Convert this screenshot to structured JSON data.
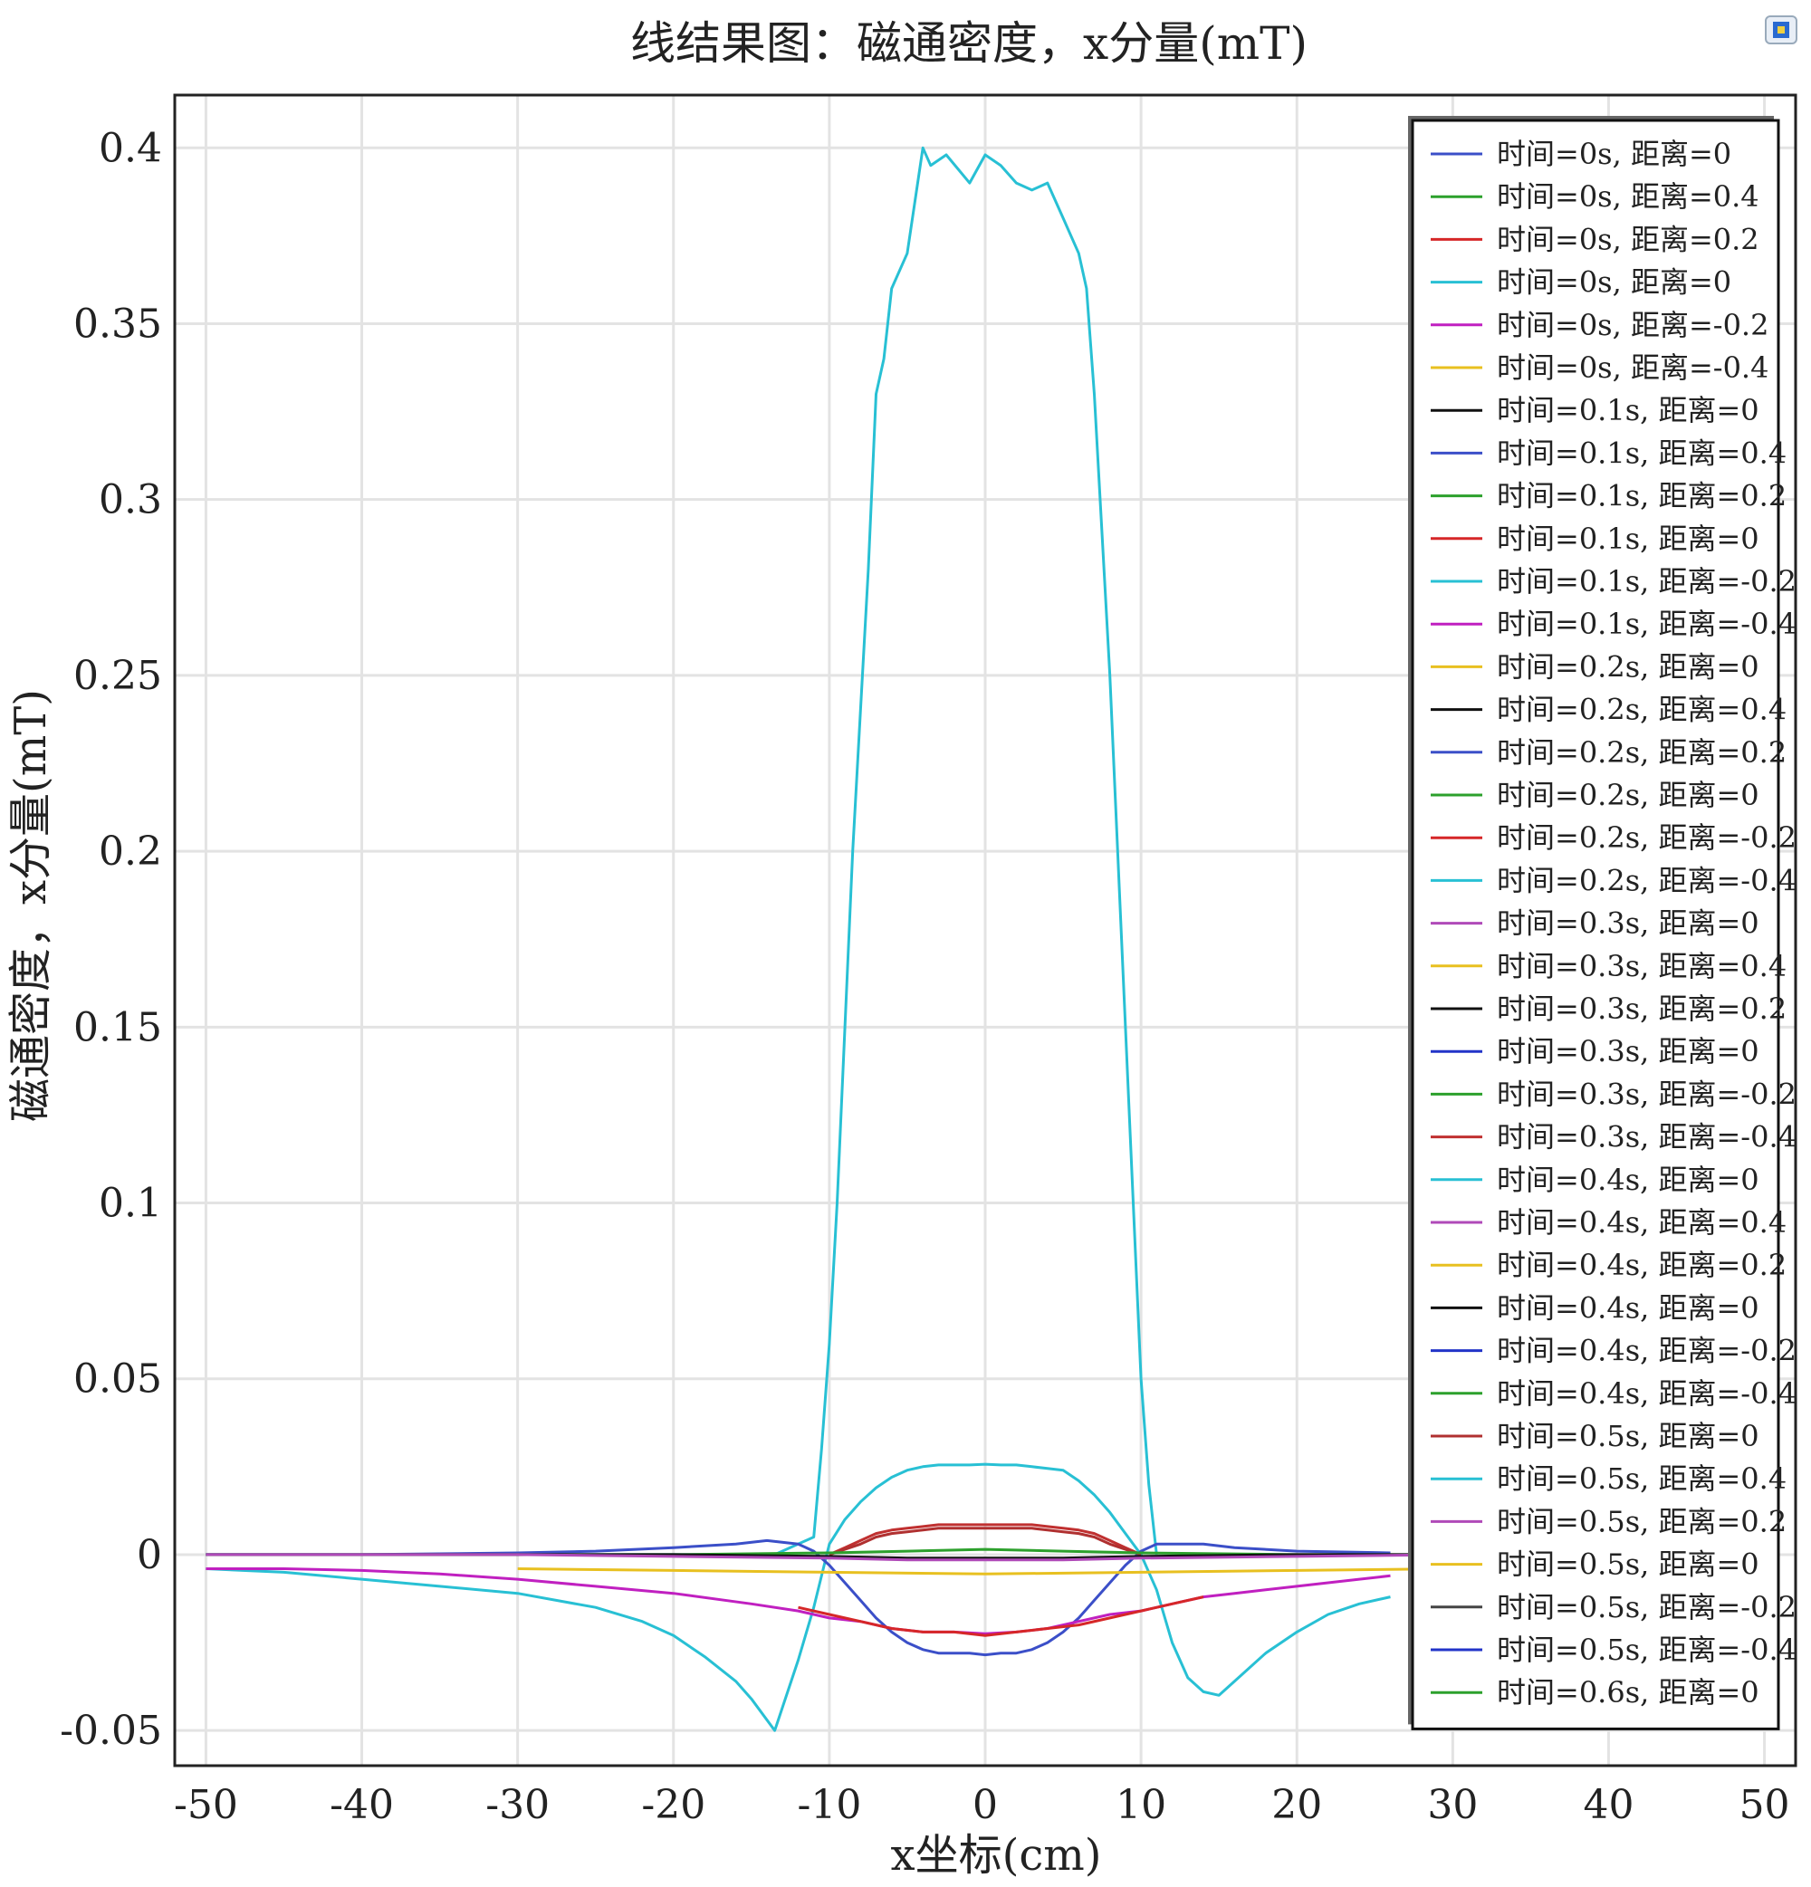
{
  "chart_data": {
    "type": "line",
    "title": "线结果图：磁通密度，x分量(mT)",
    "xlabel": "x坐标(cm)",
    "ylabel": "磁通密度，x分量(mT)",
    "xlim": [
      -52,
      52
    ],
    "ylim": [
      -0.06,
      0.415
    ],
    "xticks": [
      -50,
      -40,
      -30,
      -20,
      -10,
      0,
      10,
      20,
      30,
      40,
      50
    ],
    "yticks": [
      -0.05,
      0,
      0.05,
      0.1,
      0.15,
      0.2,
      0.25,
      0.3,
      0.35,
      0.4
    ],
    "grid": true,
    "legend_position": "top-right",
    "legend": [
      {
        "label": "时间=0s, 距离=0",
        "color": "#3b4fc8"
      },
      {
        "label": "时间=0s, 距离=0.4",
        "color": "#2ca02c"
      },
      {
        "label": "时间=0s, 距离=0.2",
        "color": "#d62728"
      },
      {
        "label": "时间=0s, 距离=0",
        "color": "#28c0d4"
      },
      {
        "label": "时间=0s, 距离=-0.2",
        "color": "#c020c0"
      },
      {
        "label": "时间=0s, 距离=-0.4",
        "color": "#e8c020"
      },
      {
        "label": "时间=0.1s, 距离=0",
        "color": "#111111"
      },
      {
        "label": "时间=0.1s, 距离=0.4",
        "color": "#3b4fc8"
      },
      {
        "label": "时间=0.1s, 距离=0.2",
        "color": "#2ca02c"
      },
      {
        "label": "时间=0.1s, 距离=0",
        "color": "#d62728"
      },
      {
        "label": "时间=0.1s, 距离=-0.2",
        "color": "#28c0d4"
      },
      {
        "label": "时间=0.1s, 距离=-0.4",
        "color": "#c020c0"
      },
      {
        "label": "时间=0.2s, 距离=0",
        "color": "#e8c020"
      },
      {
        "label": "时间=0.2s, 距离=0.4",
        "color": "#111111"
      },
      {
        "label": "时间=0.2s, 距离=0.2",
        "color": "#3b4fc8"
      },
      {
        "label": "时间=0.2s, 距离=0",
        "color": "#2ca02c"
      },
      {
        "label": "时间=0.2s, 距离=-0.2",
        "color": "#d62728"
      },
      {
        "label": "时间=0.2s, 距离=-0.4",
        "color": "#28c0d4"
      },
      {
        "label": "时间=0.3s, 距离=0",
        "color": "#b04ab8"
      },
      {
        "label": "时间=0.3s, 距离=0.4",
        "color": "#e8c020"
      },
      {
        "label": "时间=0.3s, 距离=0.2",
        "color": "#111111"
      },
      {
        "label": "时间=0.3s, 距离=0",
        "color": "#2234c8"
      },
      {
        "label": "时间=0.3s, 距离=-0.2",
        "color": "#2ca02c"
      },
      {
        "label": "时间=0.3s, 距离=-0.4",
        "color": "#c03030"
      },
      {
        "label": "时间=0.4s, 距离=0",
        "color": "#28c0d4"
      },
      {
        "label": "时间=0.4s,  距离=0.4",
        "color": "#b04ab8"
      },
      {
        "label": "时间=0.4s, 距离=0.2",
        "color": "#e8c020"
      },
      {
        "label": "时间=0.4s, 距离=0",
        "color": "#111111"
      },
      {
        "label": "时间=0.4s, 距离=-0.2",
        "color": "#2234c8"
      },
      {
        "label": "时间=0.4s, 距离=-0.4",
        "color": "#2ca02c"
      },
      {
        "label": "时间=0.5s, 距离=0",
        "color": "#b03030"
      },
      {
        "label": "时间=0.5s,  距离=0.4",
        "color": "#28c0d4"
      },
      {
        "label": "时间=0.5s, 距离=0.2",
        "color": "#b04ab8"
      },
      {
        "label": "时间=0.5s, 距离=0",
        "color": "#e8c020"
      },
      {
        "label": "时间=0.5s, 距离=-0.2",
        "color": "#444444"
      },
      {
        "label": "时间=0.5s, 距离=-0.4",
        "color": "#2234c8"
      },
      {
        "label": "时间=0.6s, 距离=0",
        "color": "#2ca02c"
      }
    ],
    "series": [
      {
        "color": "#28c0d4",
        "x": [
          -50,
          -40,
          -30,
          -25,
          -20,
          -17,
          -15,
          -13.5,
          -11,
          -10.5,
          -10,
          -9.5,
          -9,
          -8.5,
          -8,
          -7.5,
          -7,
          -6.5,
          -6,
          -5,
          -4,
          -3.5,
          -2.5,
          -1,
          0,
          1,
          2,
          3,
          4,
          5,
          6,
          6.5,
          7,
          7.5,
          8,
          8.5,
          9,
          9.5,
          10,
          10.5,
          11
        ],
        "y": [
          0,
          0,
          0,
          0,
          0,
          0,
          0,
          0,
          0.005,
          0.03,
          0.06,
          0.1,
          0.15,
          0.2,
          0.24,
          0.28,
          0.33,
          0.34,
          0.36,
          0.37,
          0.4,
          0.395,
          0.398,
          0.39,
          0.398,
          0.395,
          0.39,
          0.388,
          0.39,
          0.38,
          0.37,
          0.36,
          0.33,
          0.29,
          0.25,
          0.2,
          0.15,
          0.1,
          0.05,
          0.02,
          0
        ]
      },
      {
        "color": "#28c0d4",
        "x": [
          -50,
          -45,
          -40,
          -35,
          -30,
          -25,
          -22,
          -20,
          -18,
          -16,
          -15,
          -13.5,
          -12,
          -11,
          -10,
          -9,
          -8,
          -7,
          -6,
          -5,
          -4,
          -3,
          -2,
          -1,
          0,
          1,
          2,
          3,
          4,
          5,
          6,
          7,
          8,
          9,
          10,
          11,
          12,
          13,
          14,
          15,
          16,
          18,
          20,
          22,
          24,
          26
        ],
        "y": [
          -0.004,
          -0.005,
          -0.007,
          -0.009,
          -0.011,
          -0.015,
          -0.019,
          -0.023,
          -0.029,
          -0.036,
          -0.041,
          -0.05,
          -0.03,
          -0.015,
          0.003,
          0.01,
          0.015,
          0.019,
          0.022,
          0.024,
          0.025,
          0.0255,
          0.0255,
          0.0255,
          0.0257,
          0.0255,
          0.0255,
          0.025,
          0.0245,
          0.024,
          0.021,
          0.017,
          0.012,
          0.006,
          0.0,
          -0.01,
          -0.025,
          -0.035,
          -0.039,
          -0.04,
          -0.036,
          -0.028,
          -0.022,
          -0.017,
          -0.014,
          -0.012
        ]
      },
      {
        "color": "#3b4fc8",
        "x": [
          -50,
          -40,
          -30,
          -25,
          -20,
          -16,
          -14,
          -12,
          -11,
          -10,
          -9,
          -8,
          -7,
          -6,
          -5,
          -4,
          -3,
          -2,
          -1,
          0,
          1,
          2,
          3,
          4,
          5,
          6,
          7,
          8,
          9,
          10,
          11,
          12,
          14,
          16,
          20,
          26
        ],
        "y": [
          0,
          0,
          0.0005,
          0.001,
          0.002,
          0.003,
          0.004,
          0.003,
          0.001,
          -0.003,
          -0.008,
          -0.013,
          -0.018,
          -0.022,
          -0.025,
          -0.027,
          -0.028,
          -0.028,
          -0.028,
          -0.0285,
          -0.028,
          -0.028,
          -0.027,
          -0.025,
          -0.022,
          -0.018,
          -0.013,
          -0.008,
          -0.003,
          0.001,
          0.003,
          0.003,
          0.003,
          0.002,
          0.001,
          0.0005
        ]
      },
      {
        "color": "#c020c0",
        "x": [
          -50,
          -45,
          -40,
          -35,
          -30,
          -25,
          -20,
          -15,
          -12,
          -10,
          -8,
          -6,
          -4,
          -2,
          0,
          2,
          4,
          6,
          8,
          10,
          12,
          14,
          16,
          18,
          20,
          22,
          24,
          26
        ],
        "y": [
          -0.004,
          -0.004,
          -0.0045,
          -0.0055,
          -0.007,
          -0.009,
          -0.011,
          -0.014,
          -0.016,
          -0.018,
          -0.019,
          -0.021,
          -0.022,
          -0.022,
          -0.0225,
          -0.022,
          -0.021,
          -0.019,
          -0.017,
          -0.016,
          -0.014,
          -0.012,
          -0.011,
          -0.01,
          -0.009,
          -0.008,
          -0.007,
          -0.006
        ]
      },
      {
        "color": "#d62728",
        "x": [
          -12,
          -10,
          -8,
          -6,
          -4,
          -2,
          0,
          2,
          4,
          6,
          8,
          10,
          12,
          14
        ],
        "y": [
          -0.015,
          -0.017,
          -0.019,
          -0.021,
          -0.022,
          -0.022,
          -0.023,
          -0.022,
          -0.021,
          -0.02,
          -0.018,
          -0.016,
          -0.014,
          -0.012
        ]
      },
      {
        "color": "#c03030",
        "x": [
          -10,
          -9,
          -8,
          -7,
          -6,
          -5,
          -4,
          -3,
          -2,
          -1,
          0,
          1,
          2,
          3,
          4,
          5,
          6,
          7,
          8,
          9,
          10
        ],
        "y": [
          0,
          0.002,
          0.004,
          0.006,
          0.007,
          0.0075,
          0.008,
          0.0085,
          0.0085,
          0.0085,
          0.0085,
          0.0085,
          0.0085,
          0.0085,
          0.008,
          0.0075,
          0.007,
          0.006,
          0.004,
          0.002,
          0
        ]
      },
      {
        "color": "#b03030",
        "x": [
          -10,
          -9,
          -8,
          -7,
          -6,
          -5,
          -4,
          -3,
          -2,
          -1,
          0,
          1,
          2,
          3,
          4,
          5,
          6,
          7,
          8,
          9,
          10
        ],
        "y": [
          0,
          0.0015,
          0.003,
          0.005,
          0.006,
          0.0065,
          0.007,
          0.0075,
          0.0075,
          0.0075,
          0.0075,
          0.0075,
          0.0075,
          0.0075,
          0.007,
          0.0065,
          0.006,
          0.005,
          0.003,
          0.0015,
          0
        ]
      },
      {
        "color": "#2ca02c",
        "x": [
          -50,
          -40,
          -30,
          -20,
          -10,
          -5,
          0,
          5,
          10,
          20,
          30,
          40,
          50
        ],
        "y": [
          0,
          0,
          0,
          0,
          0.0005,
          0.001,
          0.0015,
          0.001,
          0.0005,
          0,
          0,
          0,
          0
        ]
      },
      {
        "color": "#111111",
        "x": [
          -50,
          -40,
          -30,
          -20,
          -10,
          -5,
          0,
          5,
          10,
          20,
          30,
          40,
          50
        ],
        "y": [
          0,
          0,
          0,
          0,
          -0.0005,
          -0.001,
          -0.001,
          -0.001,
          -0.0005,
          0,
          0,
          0,
          0
        ]
      },
      {
        "color": "#b04ab8",
        "x": [
          -50,
          -40,
          -30,
          -20,
          -10,
          -5,
          0,
          5,
          10,
          20,
          30,
          40,
          50
        ],
        "y": [
          0,
          0,
          0,
          -0.0005,
          -0.001,
          -0.0015,
          -0.0015,
          -0.0015,
          -0.001,
          -0.0005,
          0,
          0,
          0
        ]
      },
      {
        "color": "#e8c020",
        "x": [
          -30,
          -20,
          -10,
          0,
          10,
          20,
          30,
          40,
          50
        ],
        "y": [
          -0.004,
          -0.0045,
          -0.005,
          -0.0055,
          -0.005,
          -0.0045,
          -0.004,
          -0.004,
          -0.004
        ]
      }
    ]
  },
  "badge_icon": "comsol-logo-icon"
}
